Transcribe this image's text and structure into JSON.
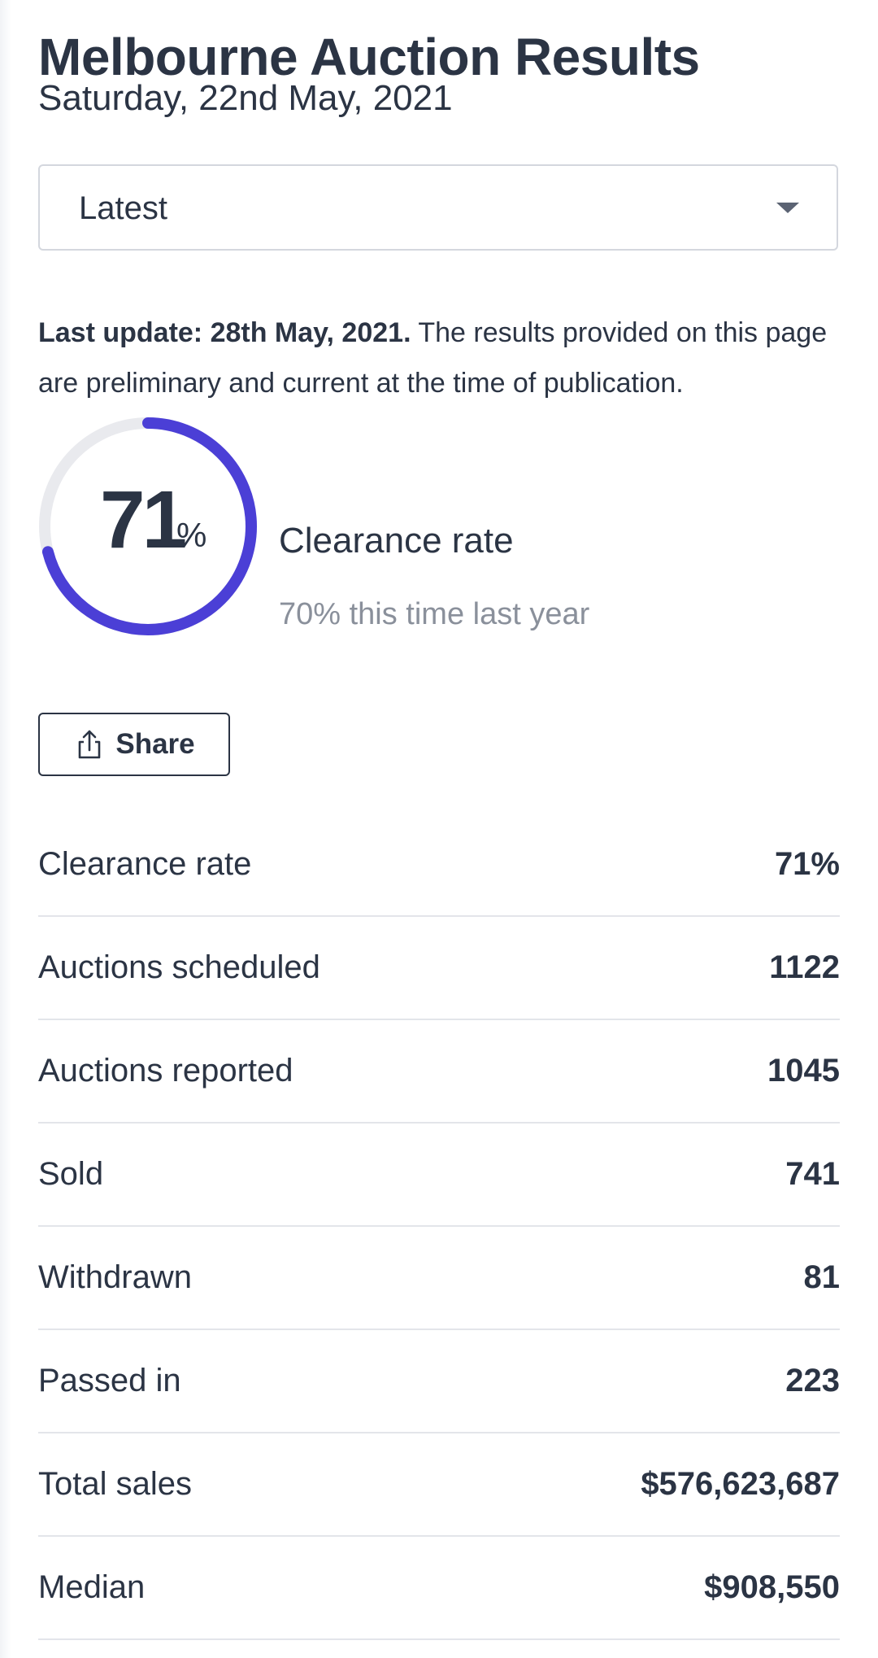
{
  "page": {
    "title": "Melbourne Auction Results",
    "date": "Saturday, 22nd May, 2021"
  },
  "filter": {
    "selected": "Latest",
    "caret_icon": "chevron-down-icon"
  },
  "notice": {
    "bold": "Last update: 28th May, 2021.",
    "text": " The results provided on this page are preliminary and current at the time of publication."
  },
  "gauge": {
    "value": "71",
    "unit": "%",
    "fraction": 0.71,
    "label": "Clearance rate",
    "comparison": "70% this time last year",
    "colors": {
      "progress": "#4b3fd6",
      "track": "#e9eaee"
    }
  },
  "share": {
    "label": "Share",
    "icon": "share-icon"
  },
  "stats": [
    {
      "label": "Clearance rate",
      "value": "71%"
    },
    {
      "label": "Auctions scheduled",
      "value": "1122"
    },
    {
      "label": "Auctions reported",
      "value": "1045"
    },
    {
      "label": "Sold",
      "value": "741"
    },
    {
      "label": "Withdrawn",
      "value": "81"
    },
    {
      "label": "Passed in",
      "value": "223"
    },
    {
      "label": "Total sales",
      "value": "$576,623,687"
    },
    {
      "label": "Median",
      "value": "$908,550"
    }
  ]
}
